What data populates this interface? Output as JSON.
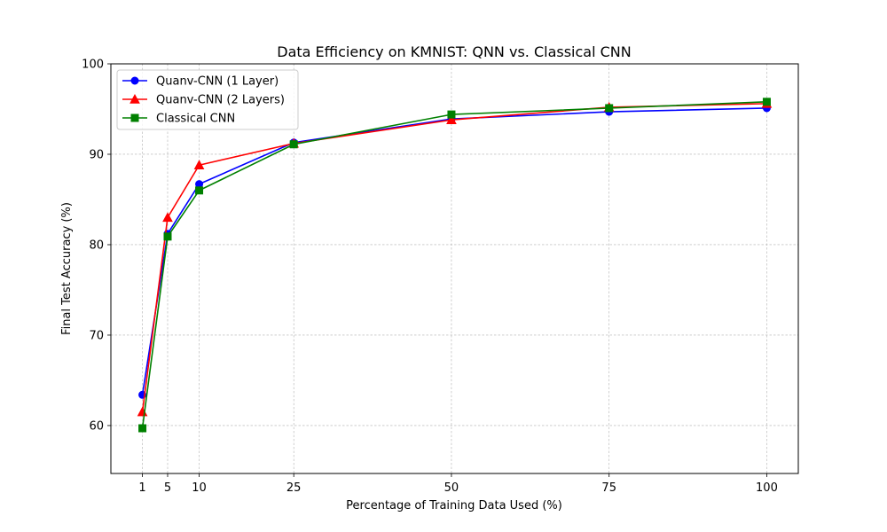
{
  "chart_data": {
    "type": "line",
    "title": "Data Efficiency on KMNIST: QNN vs. Classical CNN",
    "xlabel": "Percentage of Training Data Used (%)",
    "ylabel": "Final Test Accuracy (%)",
    "x": [
      1,
      5,
      10,
      25,
      50,
      75,
      100
    ],
    "x_ticks": [
      "1",
      "5",
      "10",
      "25",
      "50",
      "75",
      "100"
    ],
    "y_ticks": [
      "60",
      "70",
      "80",
      "90",
      "100"
    ],
    "xlim": [
      -4,
      105
    ],
    "ylim": [
      54.7,
      100
    ],
    "grid": true,
    "legend_position": "upper-left",
    "series": [
      {
        "name": "Quanv-CNN (1 Layer)",
        "color": "#0000ff",
        "marker": "circle",
        "values": [
          63.4,
          81.2,
          86.7,
          91.3,
          93.9,
          94.7,
          95.1
        ]
      },
      {
        "name": "Quanv-CNN (2 Layers)",
        "color": "#ff0000",
        "marker": "triangle",
        "values": [
          61.5,
          83.0,
          88.8,
          91.2,
          93.8,
          95.2,
          95.6
        ]
      },
      {
        "name": "Classical CNN",
        "color": "#008000",
        "marker": "square",
        "values": [
          59.7,
          80.9,
          86.0,
          91.1,
          94.4,
          95.1,
          95.8
        ]
      }
    ]
  }
}
